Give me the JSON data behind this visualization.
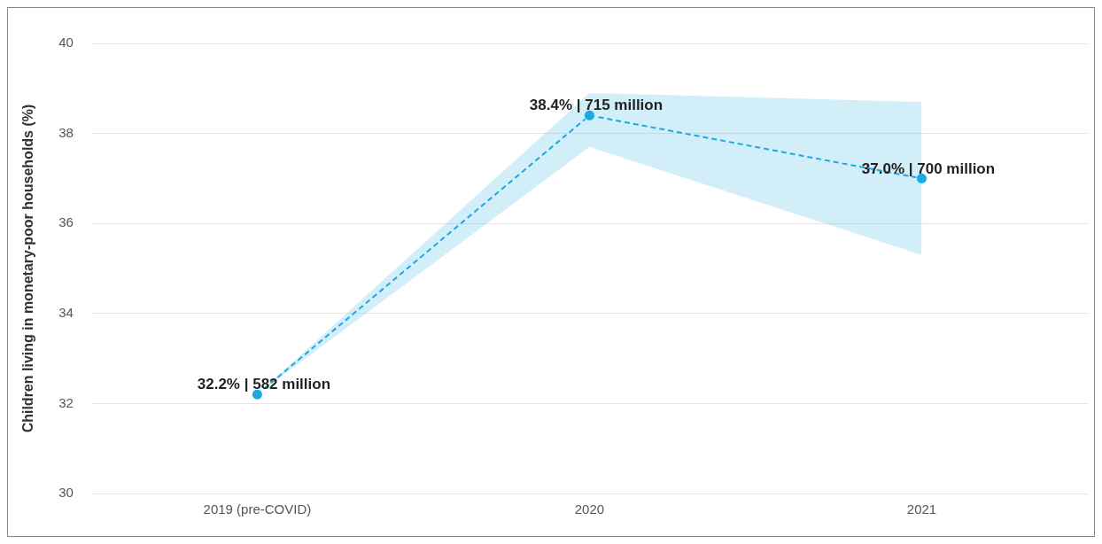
{
  "chart_data": {
    "type": "line",
    "ylabel": "Children living in monetary-poor households (%)",
    "categories": [
      "2019 (pre-COVID)",
      "2020",
      "2021"
    ],
    "series": [
      {
        "color": "#1fa8e0",
        "values": [
          32.2,
          38.4,
          37.0
        ],
        "lower": [
          32.2,
          37.7,
          35.3
        ],
        "upper": [
          32.2,
          38.9,
          38.7
        ],
        "value_labels": [
          "32.2% | 582 million",
          "38.4% | 715 million",
          "37.0% | 700 million"
        ]
      }
    ],
    "ylim": [
      30,
      40
    ],
    "yticks": [
      30,
      32,
      34,
      36,
      38,
      40
    ],
    "grid": "y",
    "legend": false,
    "marker": "circle",
    "line_style": "dashed"
  }
}
